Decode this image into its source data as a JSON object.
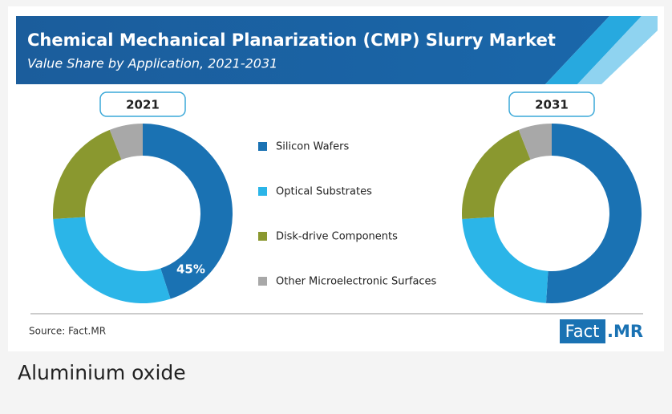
{
  "title": "Chemical Mechanical Planarization (CMP) Slurry Market",
  "subtitle": "Value Share by Application, 2021-2031",
  "source": "Source: Fact.MR",
  "logo": {
    "left": "Fact",
    "right": ".MR"
  },
  "caption": "Aluminium oxide",
  "chart_data": [
    {
      "type": "pie",
      "donut": true,
      "title": "2021",
      "categories": [
        "Silicon Wafers",
        "Optical Substrates",
        "Disk-drive Components",
        "Other Microelectronic Surfaces"
      ],
      "values": [
        45,
        29,
        20,
        6
      ],
      "value_labels": [
        "45%",
        null,
        null,
        null
      ],
      "colors": [
        "#1a72b3",
        "#2bb5e8",
        "#8a982f",
        "#a8a8a8"
      ]
    },
    {
      "type": "pie",
      "donut": true,
      "title": "2031",
      "categories": [
        "Silicon Wafers",
        "Optical Substrates",
        "Disk-drive Components",
        "Other Microelectronic Surfaces"
      ],
      "values": [
        51,
        23,
        20,
        6
      ],
      "colors": [
        "#1a72b3",
        "#2bb5e8",
        "#8a982f",
        "#a8a8a8"
      ]
    }
  ]
}
